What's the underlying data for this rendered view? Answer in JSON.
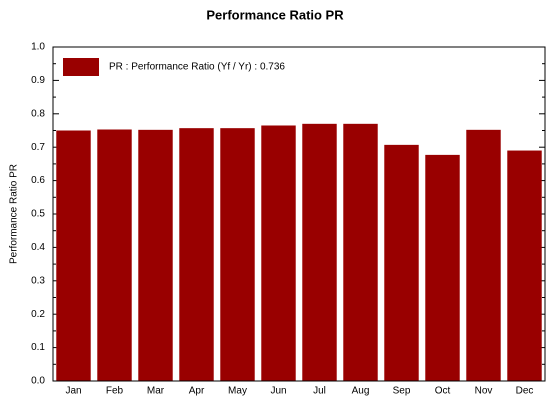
{
  "chart_data": {
    "type": "bar",
    "title": "Performance  Ratio  PR",
    "y_label": "Performance  Ratio  PR",
    "categories": [
      "Jan",
      "Feb",
      "Mar",
      "Apr",
      "May",
      "Jun",
      "Jul",
      "Aug",
      "Sep",
      "Oct",
      "Nov",
      "Dec"
    ],
    "series": [
      {
        "name": "PR : Performance Ratio (Yf / Yr) :  0.736",
        "color": "#990000",
        "values": [
          0.75,
          0.753,
          0.752,
          0.757,
          0.757,
          0.765,
          0.77,
          0.77,
          0.707,
          0.677,
          0.752,
          0.69
        ]
      }
    ],
    "ylim": [
      0,
      1
    ],
    "yticks": [
      {
        "value": 0,
        "label": "0.0"
      },
      0.1,
      0.2,
      0.3,
      0.4,
      0.5,
      0.6,
      0.7,
      0.8,
      0.9,
      {
        "value": 1,
        "label": "1.0"
      }
    ],
    "legend": "top-left"
  }
}
